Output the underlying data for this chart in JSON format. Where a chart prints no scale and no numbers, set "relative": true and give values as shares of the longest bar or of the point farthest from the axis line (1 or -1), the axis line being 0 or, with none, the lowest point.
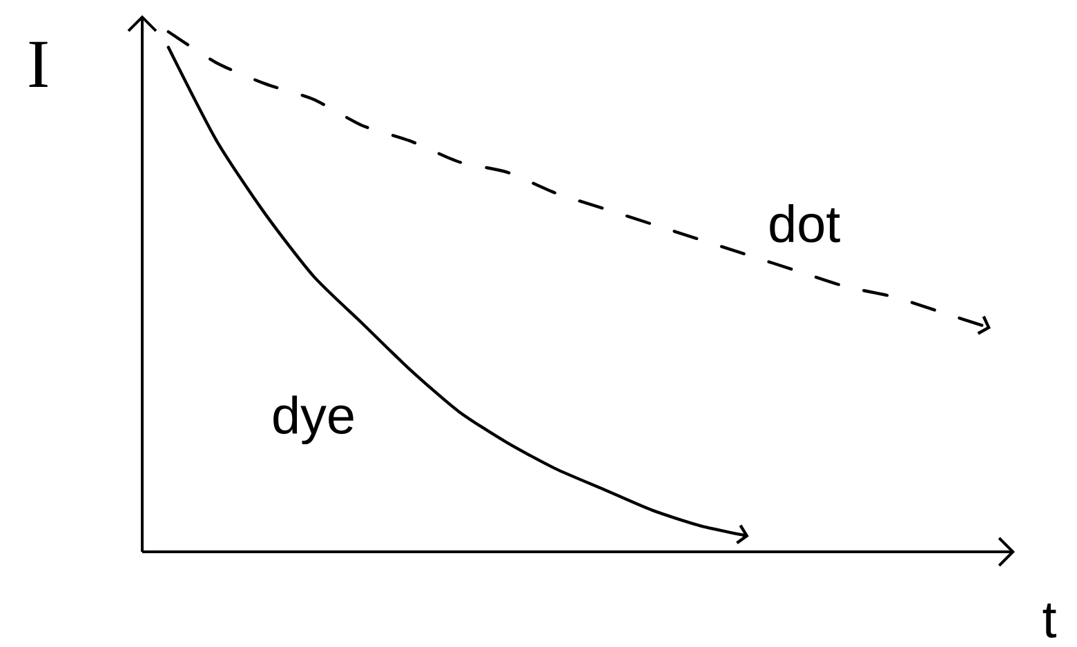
{
  "chart_data": {
    "type": "line",
    "relative": true,
    "xlabel": "t",
    "ylabel": "I",
    "categories": [
      null,
      null,
      null,
      null,
      null,
      null,
      null,
      null,
      null,
      null,
      null,
      null,
      null,
      null,
      null,
      null,
      null,
      null
    ],
    "series": [
      {
        "name": "dye",
        "color": "#000000",
        "line_style": "solid",
        "values": [
          0.97,
          0.79,
          0.65,
          0.53,
          0.44,
          0.35,
          0.27,
          0.21,
          0.16,
          0.12,
          0.08,
          0.05,
          0.03,
          null,
          null,
          null,
          null,
          null
        ]
      },
      {
        "name": "dot",
        "color": "#000000",
        "line_style": "dashed",
        "values": [
          1.0,
          0.94,
          0.9,
          0.87,
          0.82,
          0.79,
          0.75,
          0.73,
          0.69,
          0.66,
          0.63,
          0.6,
          0.57,
          0.54,
          0.51,
          0.49,
          0.46,
          0.43
        ]
      }
    ]
  }
}
